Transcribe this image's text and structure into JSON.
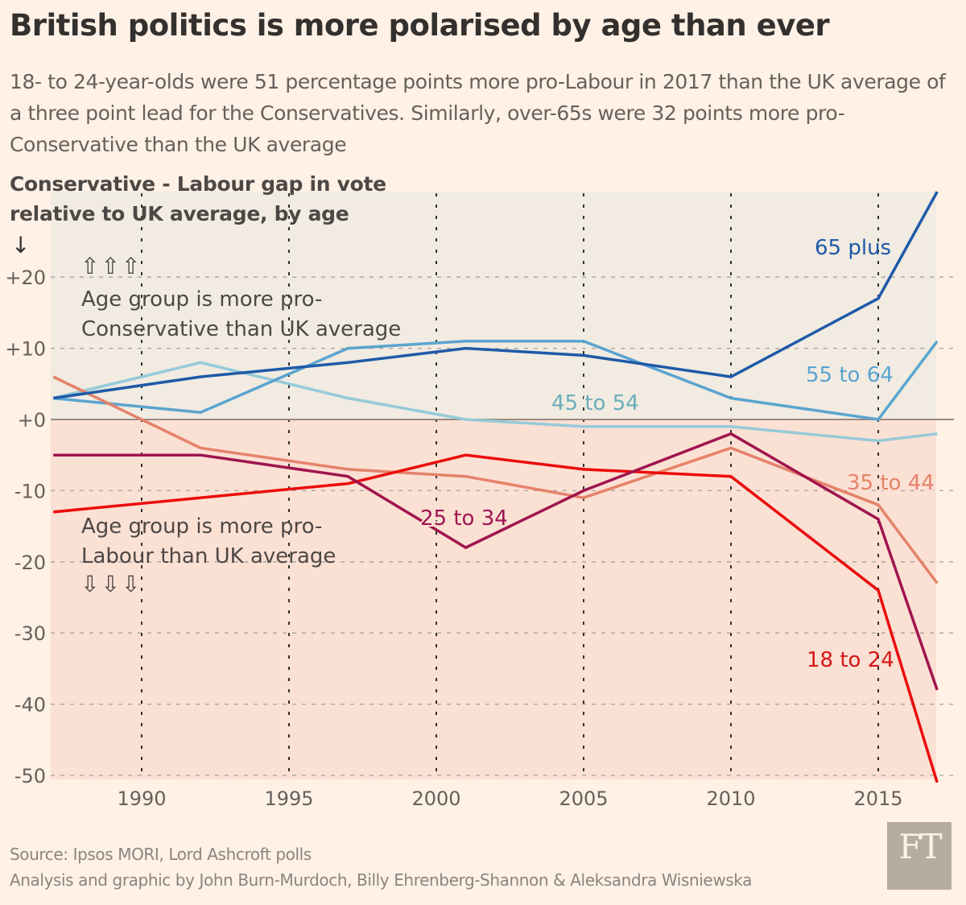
{
  "header": {
    "title": "British politics is more polarised by age than ever",
    "subtitle": "18- to 24-year-olds were 51 percentage points more pro-Labour in 2017 than the UK average of a three point lead for the Conservatives. Similarly, over-65s were 32 points more pro-Conservative than the UK average"
  },
  "footer": {
    "source": "Source: Ipsos MORI, Lord Ashcroft polls",
    "credit": "Analysis and graphic by John Burn-Murdoch, Billy Ehrenberg-Shannon & Aleksandra Wisniewska",
    "logo": "FT"
  },
  "colors": {
    "background": "#fff1e5",
    "conservative_band": "#f1ebe2",
    "labour_band": "#fbe0d4",
    "zero_line": "#9b8a82"
  },
  "chart_data": {
    "type": "line",
    "title": "British politics is more polarised by age than ever",
    "ylabel": "Conservative - Labour gap in vote relative to UK average, by age",
    "ylabel_arrow": "↓",
    "xlabel": "",
    "x": [
      1987,
      1992,
      1997,
      2001,
      2005,
      2010,
      2015,
      2017
    ],
    "xlim": [
      1987,
      2017
    ],
    "ylim": [
      -51,
      32
    ],
    "xticks": [
      1990,
      1995,
      2000,
      2005,
      2010,
      2015
    ],
    "yticks": [
      20,
      10,
      0,
      -10,
      -20,
      -30,
      -40,
      -50
    ],
    "ytick_labels": [
      "+20",
      "+10",
      "+0",
      "-10",
      "-20",
      "-30",
      "-40",
      "-50"
    ],
    "grid": true,
    "legend": "inline-labels",
    "series": [
      {
        "name": "65 plus",
        "color": "#1e5aa8",
        "values": [
          3,
          6,
          8,
          10,
          9,
          6,
          17,
          32
        ]
      },
      {
        "name": "55 to 64",
        "color": "#5ba4d0",
        "values": [
          3,
          1,
          10,
          11,
          11,
          3,
          0,
          11
        ]
      },
      {
        "name": "45 to 54",
        "color": "#96cad8",
        "label_color": "#6aaeb8",
        "values": [
          3,
          8,
          3,
          0,
          -1,
          -1,
          -3,
          -2
        ]
      },
      {
        "name": "35 to 44",
        "color": "#e5826a",
        "values": [
          6,
          -4,
          -7,
          -8,
          -11,
          -4,
          -12,
          -23
        ]
      },
      {
        "name": "25 to 34",
        "color": "#a0154f",
        "values": [
          -5,
          -5,
          -8,
          -18,
          -10,
          -2,
          -14,
          -38
        ]
      },
      {
        "name": "18 to 24",
        "color": "#eb0c0c",
        "label_color": "#d41818",
        "values": [
          -13,
          -11,
          -9,
          -5,
          -7,
          -8,
          -24,
          -51
        ]
      }
    ],
    "annotations": [
      {
        "text_lines": [
          "Age group is more pro-",
          "Conservative than UK average"
        ],
        "arrows": "⇧⇧⇧",
        "region": "above-zero"
      },
      {
        "text_lines": [
          "Age group is more pro-",
          "Labour than UK average"
        ],
        "arrows": "⇩⇩⇩",
        "region": "below-zero"
      }
    ]
  }
}
